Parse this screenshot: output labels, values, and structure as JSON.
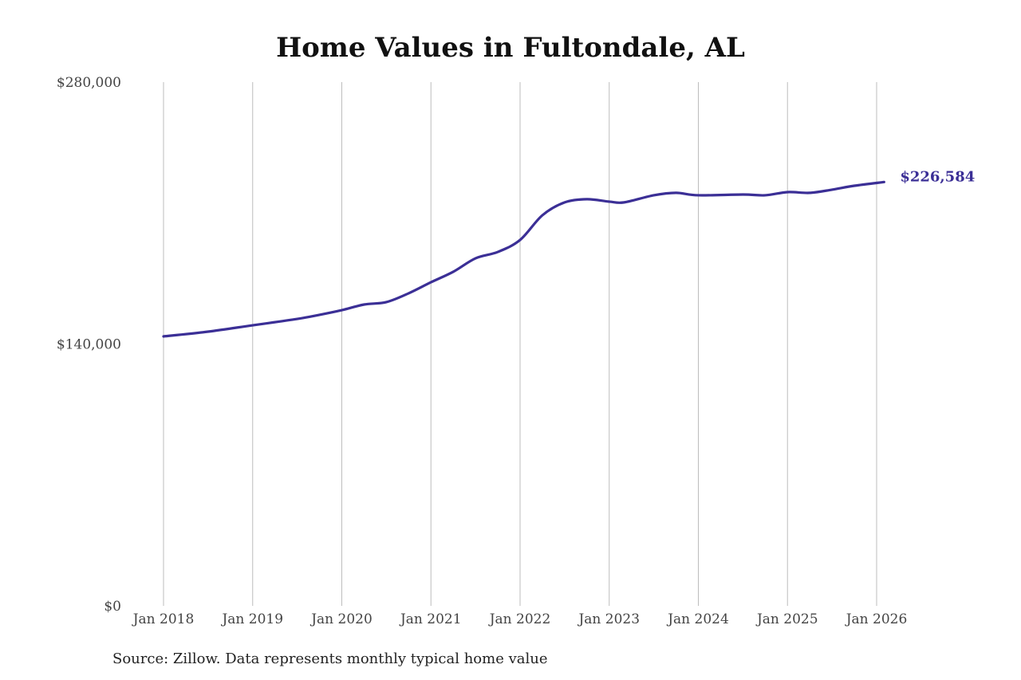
{
  "chart_data": {
    "type": "line",
    "title": "Home Values in Fultondale, AL",
    "xlabel": "",
    "ylabel": "",
    "source": "Source: Zillow. Data represents monthly typical home value",
    "ylim": [
      0,
      280000
    ],
    "y_ticks": [
      0,
      140000,
      280000
    ],
    "y_tick_labels": [
      "$0",
      "$140,000",
      "$280,000"
    ],
    "x_ticks": [
      "2018-01",
      "2019-01",
      "2020-01",
      "2021-01",
      "2022-01",
      "2023-01",
      "2024-01",
      "2025-01",
      "2026-01"
    ],
    "x_tick_labels": [
      "Jan 2018",
      "Jan 2019",
      "Jan 2020",
      "Jan 2021",
      "Jan 2022",
      "Jan 2023",
      "Jan 2024",
      "Jan 2025",
      "Jan 2026"
    ],
    "grid": "vertical",
    "line_color": "#3b2f96",
    "end_label": "$226,584",
    "series": [
      {
        "x": [
          "2018-01",
          "2018-07",
          "2019-01",
          "2019-07",
          "2019-10",
          "2020-01",
          "2020-04",
          "2020-07",
          "2020-10",
          "2021-01",
          "2021-04",
          "2021-07",
          "2021-10",
          "2022-01",
          "2022-04",
          "2022-07",
          "2022-10",
          "2023-01",
          "2023-03",
          "2023-07",
          "2023-10",
          "2024-01",
          "2024-07",
          "2024-10",
          "2025-01",
          "2025-04",
          "2025-07",
          "2025-10",
          "2026-02"
        ],
        "values": [
          144060,
          146600,
          150000,
          153400,
          155600,
          158100,
          161100,
          162400,
          167100,
          173000,
          178600,
          185800,
          189200,
          195600,
          208800,
          215700,
          217400,
          216100,
          215700,
          219500,
          220800,
          219500,
          219900,
          219500,
          221200,
          220800,
          222500,
          224600,
          226584
        ]
      }
    ]
  }
}
